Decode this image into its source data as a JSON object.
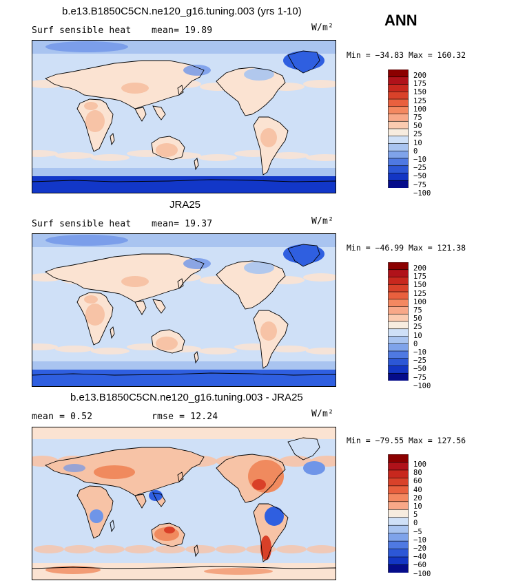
{
  "season": "ANN",
  "panels": [
    {
      "title": "b.e13.B1850C5CN.ne120_g16.tuning.003 (yrs 1-10)",
      "left_text": "Surf sensible heat",
      "stat_text": "mean=  19.89",
      "units": "W/m²",
      "minmax": "Min = −34.83 Max = 160.32",
      "levels": [
        "200",
        "175",
        "150",
        "125",
        "100",
        "75",
        "50",
        "25",
        "10",
        "0",
        "−10",
        "−25",
        "−50",
        "−75",
        "−100"
      ]
    },
    {
      "title": "JRA25",
      "left_text": "Surf sensible heat",
      "stat_text": "mean=  19.37",
      "units": "W/m²",
      "minmax": "Min = −46.99 Max = 121.38",
      "levels": [
        "200",
        "175",
        "150",
        "125",
        "100",
        "75",
        "50",
        "25",
        "10",
        "0",
        "−10",
        "−25",
        "−50",
        "−75",
        "−100"
      ]
    },
    {
      "title": "b.e13.B1850C5CN.ne120_g16.tuning.003 - JRA25",
      "left_text": "mean =   0.52",
      "stat_text": "rmse =  12.24",
      "units": "W/m²",
      "minmax": "Min = −79.55 Max = 127.56",
      "levels": [
        "100",
        "80",
        "60",
        "40",
        "20",
        "10",
        "5",
        "0",
        "−5",
        "−10",
        "−20",
        "−40",
        "−60",
        "−100"
      ]
    }
  ],
  "colors": {
    "ocean_neutral": "#cfe0f7",
    "light_blue": "#a9c4f0",
    "mid_blue": "#6f95e8",
    "strong_blue": "#2f5fe0",
    "deep_blue": "#1237c8",
    "light_peach": "#fbe3d2",
    "peach": "#f7c3a6",
    "orange": "#f08a5e",
    "red": "#d94028",
    "scale_warm": [
      "#8b0000",
      "#b0121a",
      "#c8281e",
      "#d9422a",
      "#e9603e",
      "#f48860",
      "#f8a888",
      "#fbcbb0",
      "#f7ecdf"
    ],
    "scale_cool": [
      "#cfe0f7",
      "#a9c4f0",
      "#7fa3ea",
      "#4f79e2",
      "#2c57d6",
      "#1336c4",
      "#050c8a"
    ],
    "scale_diff": [
      "#8b0000",
      "#b0121a",
      "#c8281e",
      "#d9422a",
      "#e9603e",
      "#f48860",
      "#f8a888",
      "#f7ecdf",
      "#cfe0f7",
      "#a9c4f0",
      "#7fa3ea",
      "#4f79e2",
      "#2c57d6",
      "#1336c4",
      "#050c8a"
    ]
  }
}
